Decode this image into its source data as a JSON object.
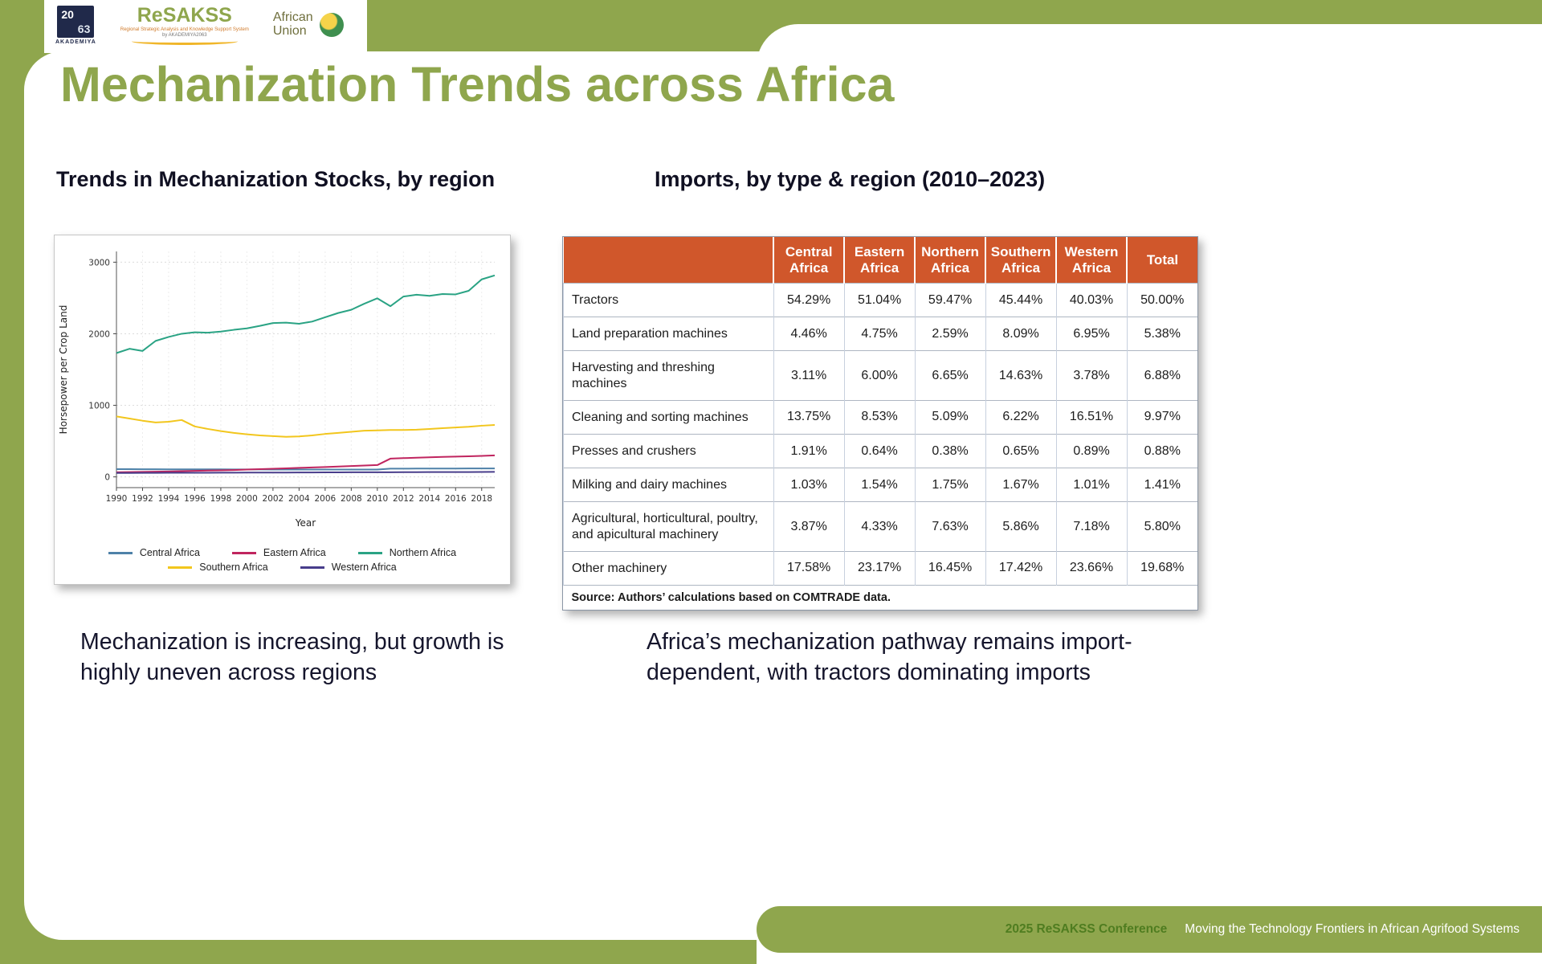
{
  "page": {
    "title": "Mechanization Trends across Africa",
    "left_heading": "Trends in Mechanization Stocks, by region",
    "right_heading": "Imports, by type & region (2010–2023)",
    "left_caption": "Mechanization is increasing, but growth is highly uneven across regions",
    "right_caption": "Africa’s mechanization pathway remains import-dependent, with tractors dominating imports",
    "footer": {
      "event": "2025 ReSAKSS Conference",
      "tagline": "Moving the Technology Frontiers in African Agrifood Systems"
    }
  },
  "logos": {
    "akademiya": {
      "mark_top": "20",
      "mark_bottom": "63",
      "caption": "AKADEMIYA"
    },
    "resakss": {
      "name": "ReSAKSS",
      "tagline": "Regional Strategic Analysis and Knowledge Support System",
      "byline": "by AKADEMIYA2063"
    },
    "african_union": {
      "line1": "African",
      "line2": "Union"
    }
  },
  "colors": {
    "accent_green": "#8fa64d",
    "table_header_orange": "#d0572b"
  },
  "chart_data": [
    {
      "type": "line",
      "title": "Trends in Mechanization Stocks, by region",
      "xlabel": "Year",
      "ylabel": "Horsepower per Crop Land",
      "ylim": [
        0,
        3000
      ],
      "yticks": [
        0,
        1000,
        2000,
        3000
      ],
      "xticks": [
        1990,
        1992,
        1994,
        1996,
        1998,
        2000,
        2002,
        2004,
        2006,
        2008,
        2010,
        2012,
        2014,
        2016,
        2018
      ],
      "grid": true,
      "legend_position": "bottom",
      "x": [
        1990,
        1991,
        1992,
        1993,
        1994,
        1995,
        1996,
        1997,
        1998,
        1999,
        2000,
        2001,
        2002,
        2003,
        2004,
        2005,
        2006,
        2007,
        2008,
        2009,
        2010,
        2011,
        2012,
        2013,
        2014,
        2015,
        2016,
        2017,
        2018,
        2019
      ],
      "series": [
        {
          "name": "Central Africa",
          "color": "#4e81a8",
          "values": [
            108,
            108,
            107,
            107,
            106,
            106,
            105,
            105,
            105,
            104,
            104,
            104,
            103,
            103,
            103,
            103,
            102,
            102,
            102,
            102,
            102,
            115,
            115,
            116,
            116,
            117,
            117,
            118,
            118,
            118
          ]
        },
        {
          "name": "Eastern Africa",
          "color": "#c0255f",
          "values": [
            65,
            68,
            70,
            73,
            76,
            80,
            84,
            88,
            92,
            96,
            102,
            108,
            114,
            120,
            126,
            132,
            138,
            145,
            152,
            158,
            165,
            255,
            262,
            268,
            274,
            280,
            284,
            288,
            293,
            300
          ]
        },
        {
          "name": "Northern Africa",
          "color": "#2aa384",
          "values": [
            1730,
            1790,
            1760,
            1900,
            1955,
            2000,
            2020,
            2015,
            2030,
            2055,
            2075,
            2110,
            2150,
            2155,
            2140,
            2170,
            2230,
            2290,
            2335,
            2420,
            2495,
            2385,
            2520,
            2545,
            2530,
            2555,
            2550,
            2600,
            2760,
            2815
          ]
        },
        {
          "name": "Southern Africa",
          "color": "#f2c61d",
          "values": [
            845,
            815,
            785,
            760,
            770,
            795,
            705,
            670,
            640,
            615,
            595,
            580,
            570,
            560,
            565,
            580,
            600,
            615,
            630,
            645,
            650,
            655,
            655,
            660,
            670,
            680,
            690,
            700,
            715,
            725
          ]
        },
        {
          "name": "Western Africa",
          "color": "#483d8b",
          "values": [
            55,
            55,
            56,
            56,
            57,
            57,
            58,
            58,
            59,
            59,
            60,
            60,
            61,
            61,
            62,
            62,
            63,
            63,
            64,
            64,
            65,
            65,
            66,
            66,
            67,
            67,
            68,
            68,
            69,
            70
          ]
        }
      ],
      "legend_rows": [
        [
          "Central Africa",
          "Eastern Africa",
          "Northern Africa"
        ],
        [
          "Southern Africa",
          "Western Africa"
        ]
      ]
    },
    {
      "type": "table",
      "title": "Imports, by type & region (2010–2023)",
      "columns": [
        "Central Africa",
        "Eastern Africa",
        "Northern Africa",
        "Southern Africa",
        "Western Africa",
        "Total"
      ],
      "rows": [
        {
          "label": "Tractors",
          "values": [
            "54.29%",
            "51.04%",
            "59.47%",
            "45.44%",
            "40.03%",
            "50.00%"
          ]
        },
        {
          "label": "Land preparation machines",
          "values": [
            "4.46%",
            "4.75%",
            "2.59%",
            "8.09%",
            "6.95%",
            "5.38%"
          ]
        },
        {
          "label": "Harvesting and threshing machines",
          "values": [
            "3.11%",
            "6.00%",
            "6.65%",
            "14.63%",
            "3.78%",
            "6.88%"
          ]
        },
        {
          "label": "Cleaning and sorting machines",
          "values": [
            "13.75%",
            "8.53%",
            "5.09%",
            "6.22%",
            "16.51%",
            "9.97%"
          ]
        },
        {
          "label": "Presses and crushers",
          "values": [
            "1.91%",
            "0.64%",
            "0.38%",
            "0.65%",
            "0.89%",
            "0.88%"
          ]
        },
        {
          "label": "Milking and dairy machines",
          "values": [
            "1.03%",
            "1.54%",
            "1.75%",
            "1.67%",
            "1.01%",
            "1.41%"
          ]
        },
        {
          "label": "Agricultural, horticultural, poultry, and apicultural machinery",
          "values": [
            "3.87%",
            "4.33%",
            "7.63%",
            "5.86%",
            "7.18%",
            "5.80%"
          ]
        },
        {
          "label": "Other machinery",
          "values": [
            "17.58%",
            "23.17%",
            "16.45%",
            "17.42%",
            "23.66%",
            "19.68%"
          ]
        }
      ],
      "source": "Source: Authors’ calculations based on COMTRADE data."
    }
  ]
}
